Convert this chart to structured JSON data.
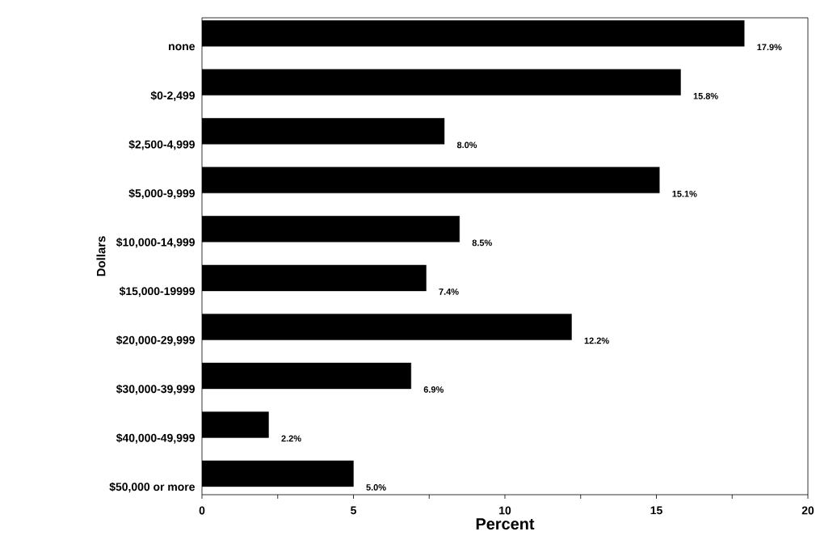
{
  "chart_data": {
    "type": "bar",
    "orientation": "horizontal",
    "xlabel": "Percent",
    "ylabel": "Dollars",
    "categories": [
      "none",
      "$0-2,499",
      "$2,500-4,999",
      "$5,000-9,999",
      "$10,000-14,999",
      "$15,000-19999",
      "$20,000-29,999",
      "$30,000-39,999",
      "$40,000-49,999",
      "$50,000 or more"
    ],
    "values": [
      17.9,
      15.8,
      8.0,
      15.1,
      8.5,
      7.4,
      12.2,
      6.9,
      2.2,
      5.0
    ],
    "value_labels": [
      "17.9%",
      "15.8%",
      "8.0%",
      "15.1%",
      "8.5%",
      "7.4%",
      "12.2%",
      "6.9%",
      "2.2%",
      "5.0%"
    ],
    "color": "#000000",
    "xlim": [
      0,
      20
    ],
    "xticks": [
      0,
      {
        "value": 2.5,
        "label": null
      },
      5,
      {
        "value": 7.5,
        "label": null
      },
      10,
      {
        "value": 12.5,
        "label": null
      },
      15,
      {
        "value": 17.5,
        "label": null
      },
      20
    ],
    "grid": false
  }
}
